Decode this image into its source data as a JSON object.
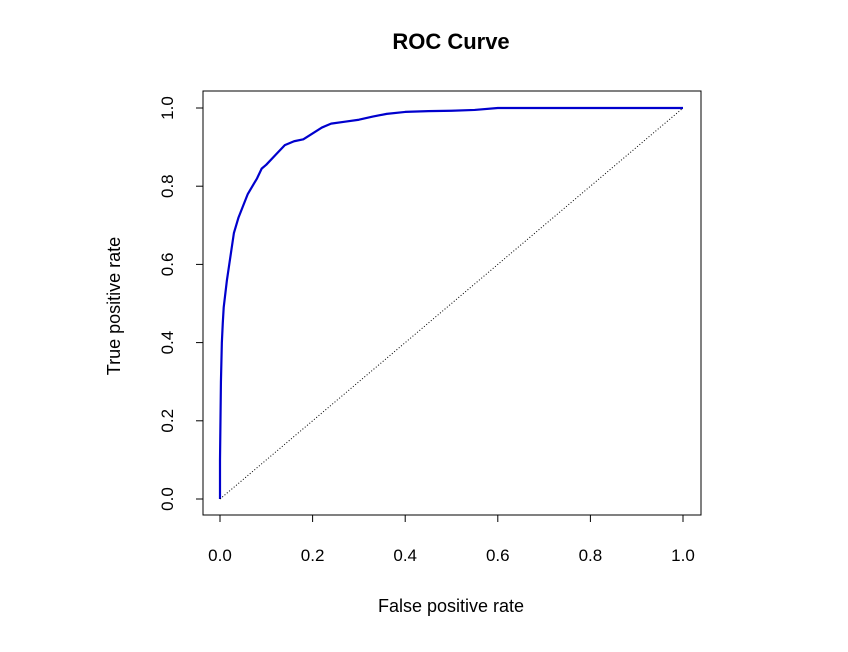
{
  "chart_data": {
    "type": "line",
    "title": "ROC Curve",
    "xlabel": "False positive rate",
    "ylabel": "True positive rate",
    "xlim": [
      0,
      1
    ],
    "ylim": [
      0,
      1
    ],
    "x_ticks": [
      "0.0",
      "0.2",
      "0.4",
      "0.6",
      "0.8",
      "1.0"
    ],
    "y_ticks": [
      "0.0",
      "0.2",
      "0.4",
      "0.6",
      "0.8",
      "1.0"
    ],
    "grid": false,
    "series": [
      {
        "color": "#0000CD",
        "x": [
          0.0,
          0.0,
          0.002,
          0.004,
          0.006,
          0.008,
          0.011,
          0.015,
          0.02,
          0.025,
          0.03,
          0.04,
          0.05,
          0.06,
          0.07,
          0.08,
          0.09,
          0.1,
          0.12,
          0.14,
          0.16,
          0.18,
          0.2,
          0.22,
          0.24,
          0.27,
          0.3,
          0.33,
          0.36,
          0.4,
          0.45,
          0.5,
          0.55,
          0.6,
          0.7,
          0.8,
          0.9,
          1.0
        ],
        "y": [
          0.0,
          0.1,
          0.3,
          0.4,
          0.45,
          0.49,
          0.52,
          0.56,
          0.6,
          0.64,
          0.68,
          0.72,
          0.75,
          0.78,
          0.8,
          0.82,
          0.845,
          0.855,
          0.88,
          0.905,
          0.915,
          0.92,
          0.935,
          0.95,
          0.96,
          0.965,
          0.97,
          0.978,
          0.985,
          0.99,
          0.992,
          0.993,
          0.995,
          1.0,
          1.0,
          1.0,
          1.0,
          1.0
        ]
      },
      {
        "color": "#000000",
        "style": "dotted",
        "x": [
          0,
          1
        ],
        "y": [
          0,
          1
        ]
      }
    ]
  }
}
